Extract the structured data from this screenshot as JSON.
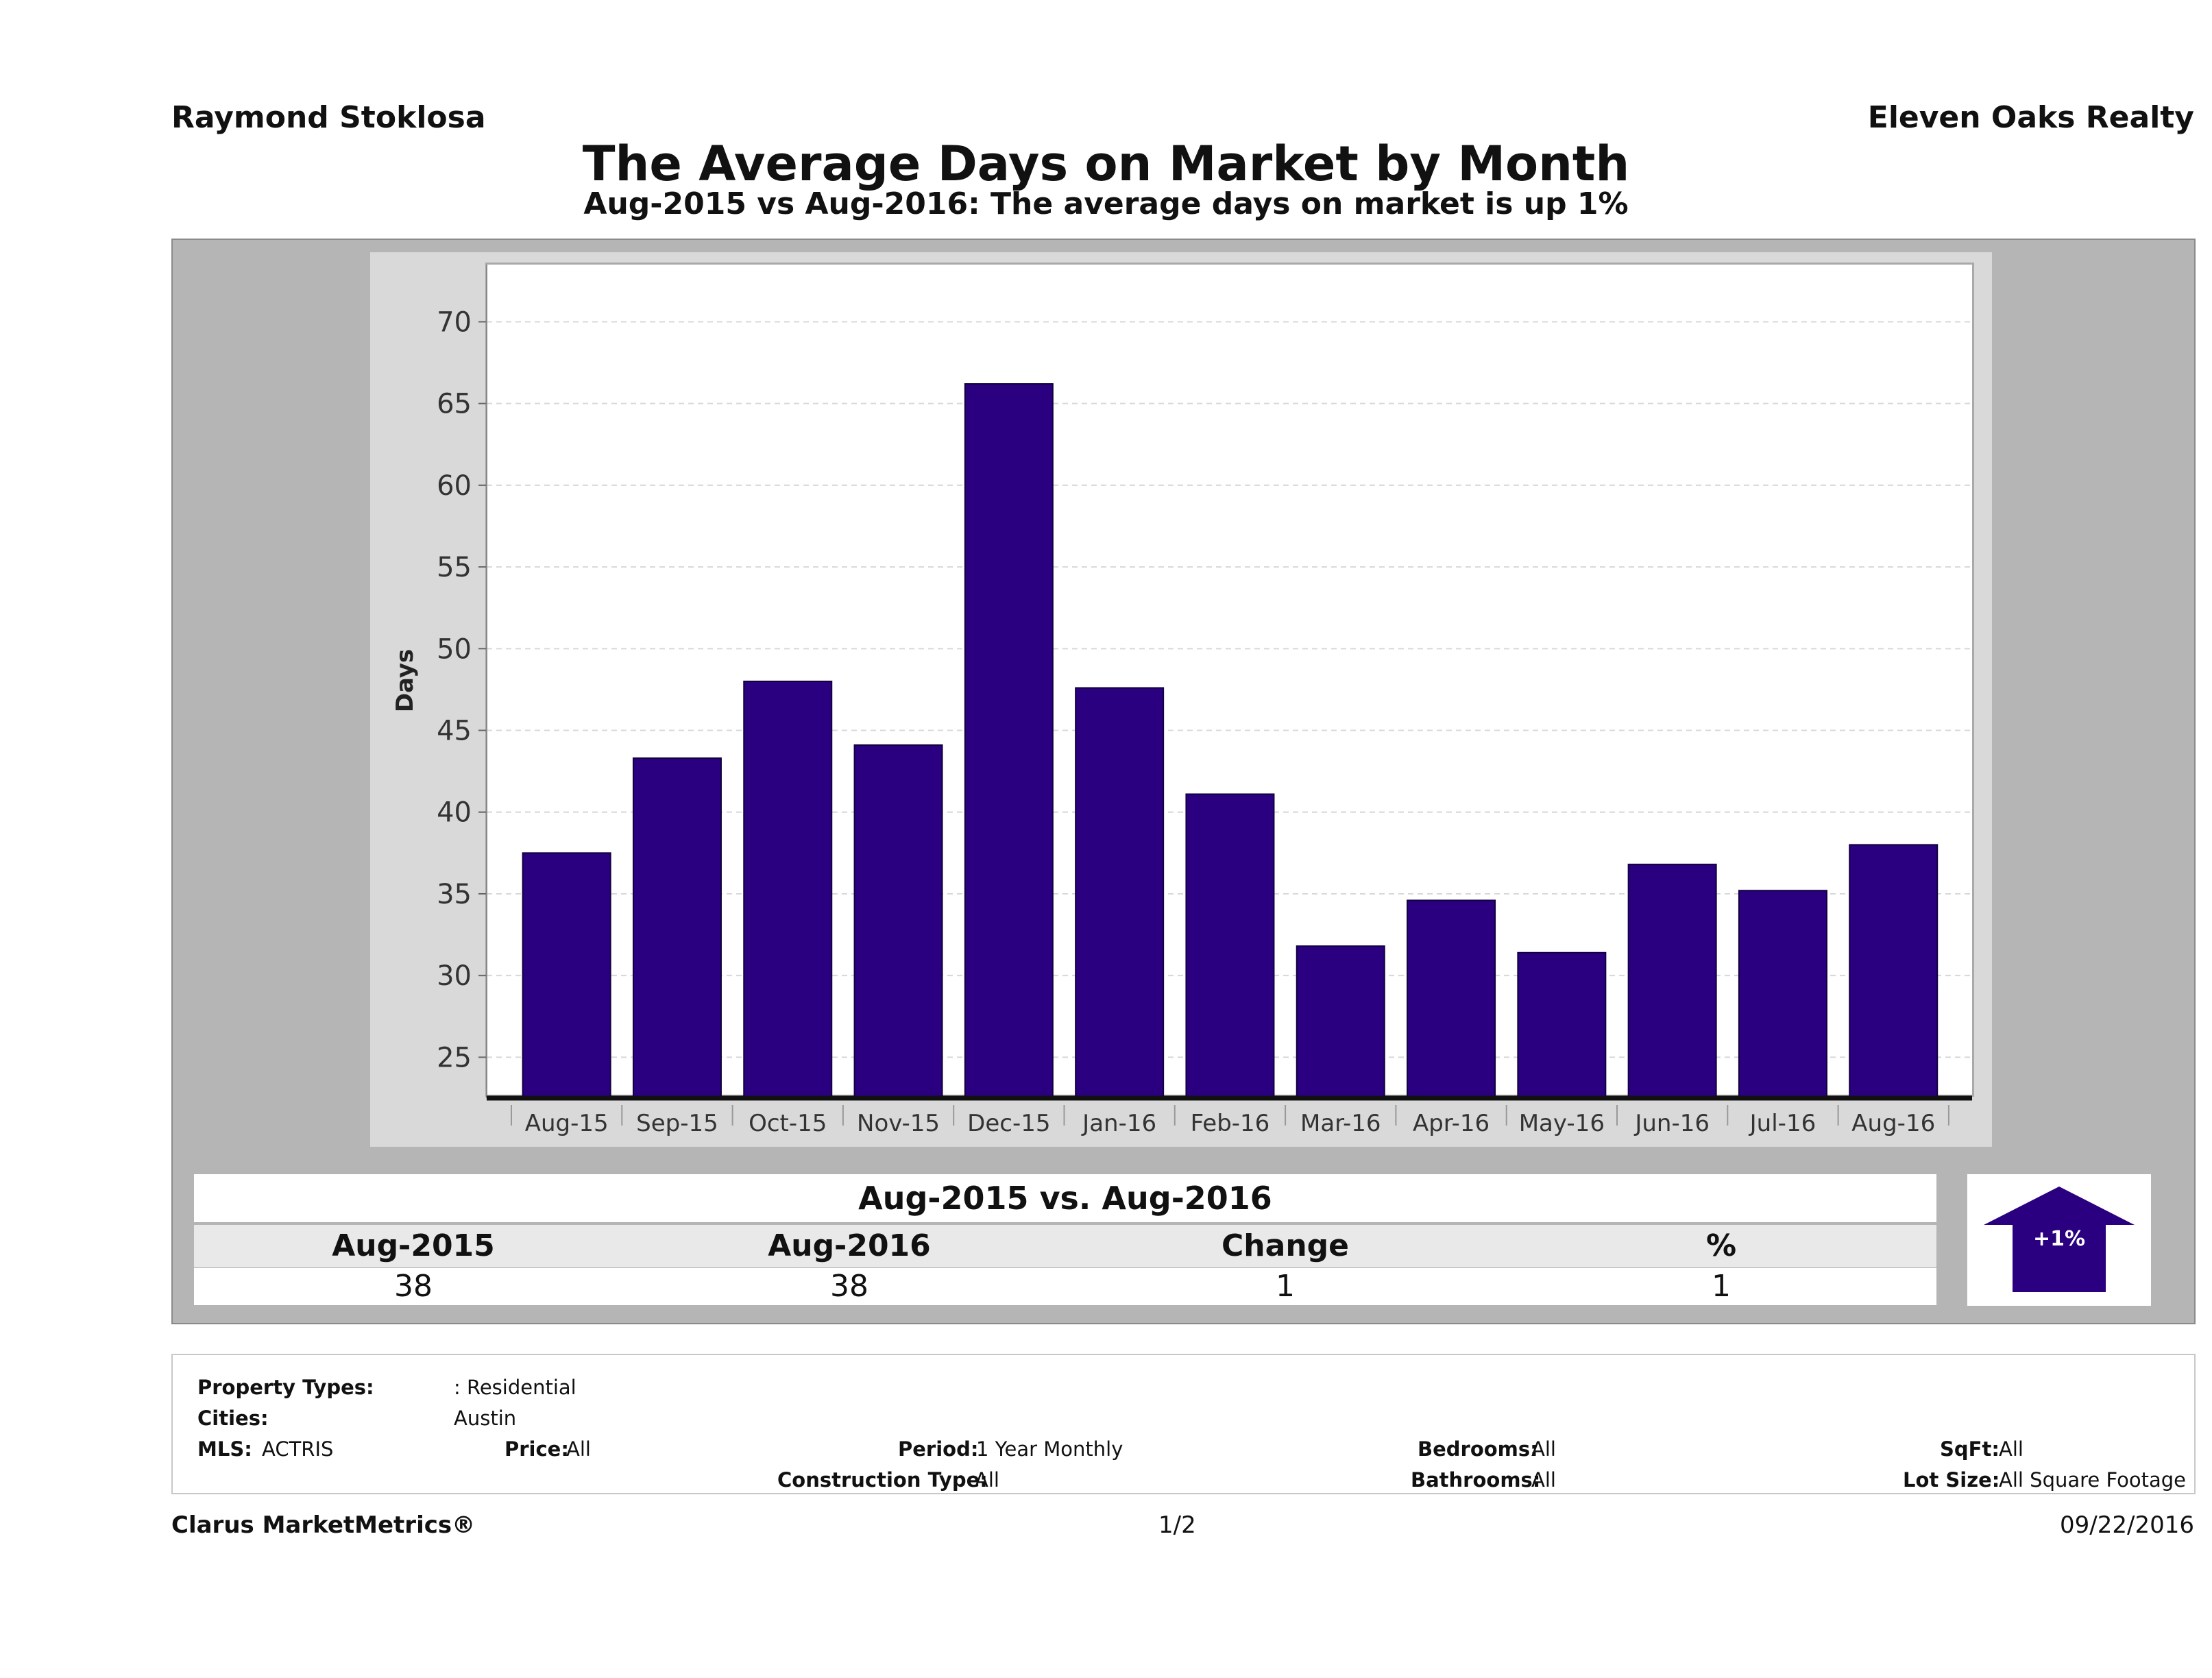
{
  "header": {
    "agent": "Raymond Stoklosa",
    "brokerage": "Eleven Oaks Realty",
    "title": "The Average Days on Market by Month",
    "subtitle": "Aug-2015 vs Aug-2016: The average days on market is up 1%"
  },
  "chart_data": {
    "type": "bar",
    "title": "The Average Days on Market by Month",
    "xlabel": "",
    "ylabel": "Days",
    "categories": [
      "Aug-15",
      "Sep-15",
      "Oct-15",
      "Nov-15",
      "Dec-15",
      "Jan-16",
      "Feb-16",
      "Mar-16",
      "Apr-16",
      "May-16",
      "Jun-16",
      "Jul-16",
      "Aug-16"
    ],
    "values": [
      37.5,
      43.3,
      48.0,
      44.1,
      66.2,
      47.6,
      41.1,
      31.8,
      34.6,
      31.4,
      36.8,
      35.2,
      38.0
    ],
    "ylim": [
      22.5,
      73.5
    ],
    "yticks": [
      25,
      30,
      35,
      40,
      45,
      50,
      55,
      60,
      65,
      70
    ],
    "grid": true,
    "bar_color": "#2a0080"
  },
  "comparison": {
    "title": "Aug-2015 vs. Aug-2016",
    "headers": [
      "Aug-2015",
      "Aug-2016",
      "Change",
      "%"
    ],
    "values": [
      "38",
      "38",
      "1",
      "1"
    ],
    "badge": "+1%",
    "badge_color": "#2a0080"
  },
  "filters": {
    "property_types_label": "Property Types:",
    "property_types_value": ": Residential",
    "cities_label": "Cities:",
    "cities_value": "Austin",
    "mls_label": "MLS:",
    "mls_value": "ACTRIS",
    "price_label": "Price:",
    "price_value": "All",
    "period_label": "Period:",
    "period_value": "1 Year Monthly",
    "construction_label": "Construction Type:",
    "construction_value": "All",
    "bedrooms_label": "Bedrooms:",
    "bedrooms_value": "All",
    "bathrooms_label": "Bathrooms:",
    "bathrooms_value": "All",
    "sqft_label": "SqFt:",
    "sqft_value": "All",
    "lot_label": "Lot Size:",
    "lot_value": "All Square Footage"
  },
  "footer": {
    "product": "Clarus MarketMetrics®",
    "page": "1/2",
    "date": "09/22/2016"
  }
}
